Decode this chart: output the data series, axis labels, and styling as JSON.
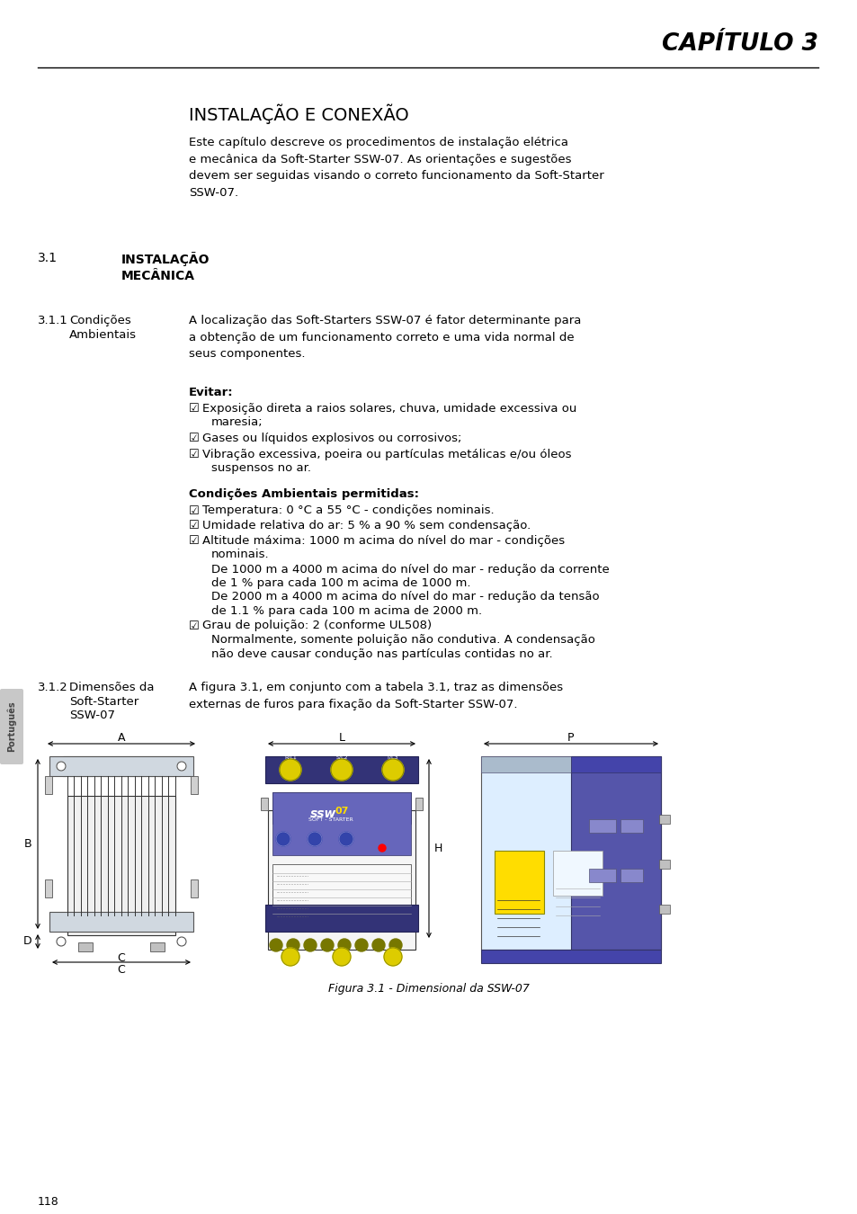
{
  "bg_color": "#ffffff",
  "text_color": "#000000",
  "chapter_title": "CAPÍTULO 3",
  "section_title": "INSTALAÇÃO E CONEXÃO",
  "intro_text": "Este capítulo descreve os procedimentos de instalação elétrica\ne mecânica da Soft-Starter SSW-07. As orientações e sugestões\ndevem ser seguidas visando o correto funcionamento da Soft-Starter\nSSW-07.",
  "section_31_label": "3.1",
  "section_31_title": "INSTALAÇÃO\nMECÂNICA",
  "section_311_label": "3.1.1",
  "section_311_title_line1": "Condições",
  "section_311_title_line2": "Ambientais",
  "section_311_intro": "A localização das Soft-Starters SSW-07 é fator determinante para\na obtenção de um funcionamento correto e uma vida normal de\nseus componentes.",
  "evitar_title": "Evitar:",
  "evitar_item1_line1": "Exposição direta a raios solares, chuva, umidade excessiva ou",
  "evitar_item1_line2": "maresia;",
  "evitar_item2": "Gases ou líquidos explosivos ou corrosivos;",
  "evitar_item3_line1": "Vibração excessiva, poeira ou partículas metálicas e/ou óleos",
  "evitar_item3_line2": "suspensos no ar.",
  "cond_title": "Condições Ambientais permitidas:",
  "cond_item1": "Temperatura: 0 °C a 55 °C - condições nominais.",
  "cond_item2": "Umidade relativa do ar: 5 % a 90 % sem condensação.",
  "cond_item3_line1": "Altitude máxima: 1000 m acima do nível do mar - condições",
  "cond_item3_line2": "nominais.",
  "cond_item3_line3": "De 1000 m a 4000 m acima do nível do mar - redução da corrente",
  "cond_item3_line4": "de 1 % para cada 100 m acima de 1000 m.",
  "cond_item3_line5": "De 2000 m a 4000 m acima do nível do mar - redução da tensão",
  "cond_item3_line6": "de 1.1 % para cada 100 m acima de 2000 m.",
  "cond_item4_line1": "Grau de poluição: 2 (conforme UL508)",
  "cond_item4_line2": "Normalmente, somente poluição não condutiva. A condensação",
  "cond_item4_line3": "não deve causar condução nas partículas contidas no ar.",
  "section_312_label": "3.1.2",
  "section_312_title_line1": "Dimensões da",
  "section_312_title_line2": "Soft-Starter",
  "section_312_title_line3": "SSW-07",
  "section_312_text": "A figura 3.1, em conjunto com a tabela 3.1, traz as dimensões\nexternas de furos para fixação da Soft-Starter SSW-07.",
  "figure_caption": "Figura 3.1 - Dimensional da SSW-07",
  "page_number": "118",
  "sidebar_text": "Português",
  "sidebar_color": "#cccccc",
  "sidebar_text_color": "#555555",
  "dim_label_A": "A",
  "dim_label_B": "B",
  "dim_label_C": "C",
  "dim_label_D": "D",
  "dim_label_L": "L",
  "dim_label_H": "H",
  "dim_label_P": "P"
}
